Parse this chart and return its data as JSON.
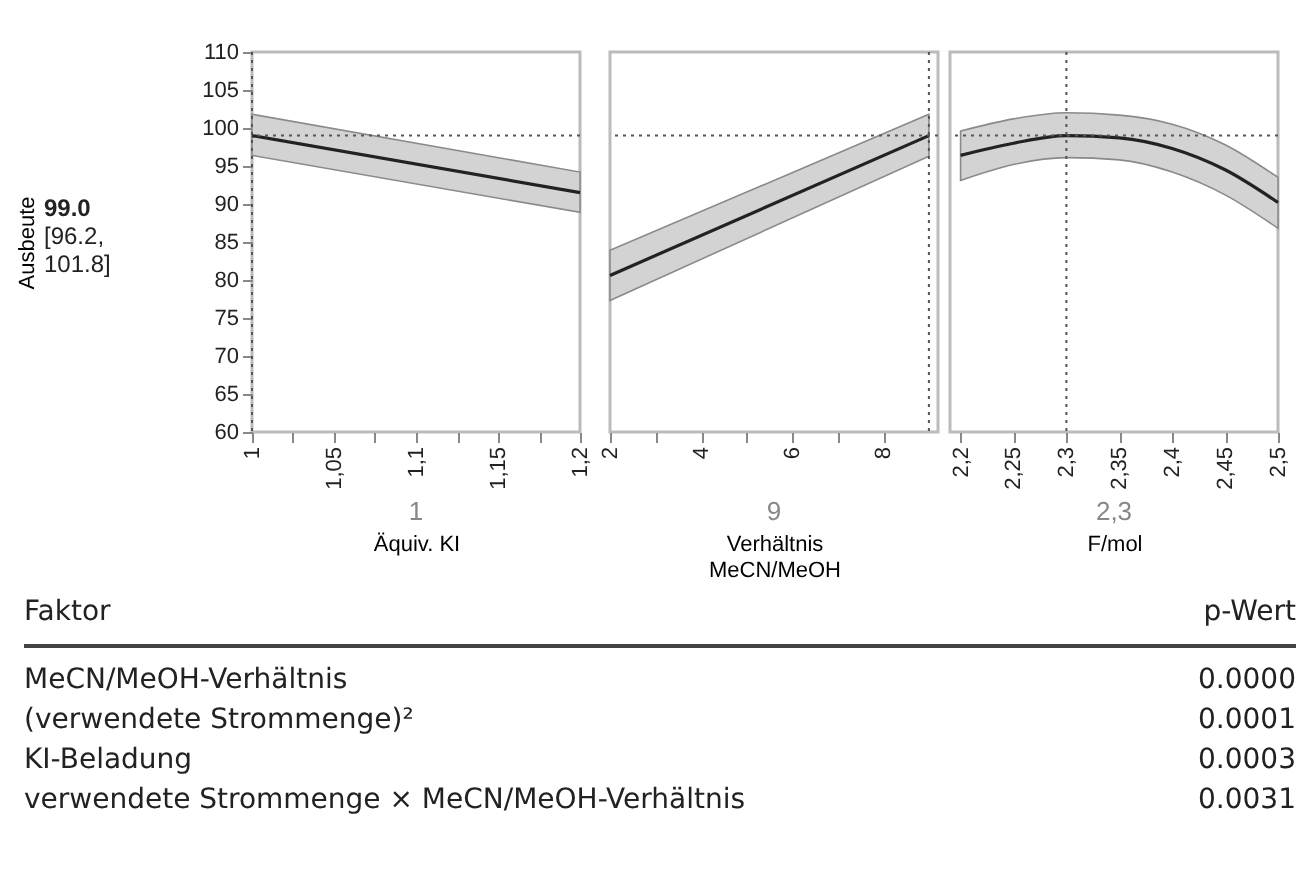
{
  "chart_data": [
    {
      "type": "line",
      "ylabel": "Ausbeute",
      "xlabel": "Äquiv. KI",
      "annotations": [
        "99.0",
        "[96.2,",
        "101.8]",
        "1"
      ],
      "x": [
        1,
        1.2
      ],
      "xlim": [
        1,
        1.2
      ],
      "xticks": [
        1,
        {
          "value": 1.025,
          "label": null
        },
        {
          "value": 1.05,
          "label": "1,05"
        },
        {
          "value": 1.075,
          "label": null
        },
        {
          "value": 1.1,
          "label": "1,1"
        },
        {
          "value": 1.125,
          "label": null
        },
        {
          "value": 1.15,
          "label": "1,15"
        },
        {
          "value": 1.175,
          "label": null
        },
        {
          "value": 1.2,
          "label": "1,2"
        }
      ],
      "ylim": [
        60,
        110
      ],
      "yticks": [
        60,
        65,
        70,
        75,
        80,
        85,
        90,
        95,
        100,
        105,
        110
      ],
      "series": [
        {
          "color": "#222222",
          "values": [
            99.0,
            91.5
          ],
          "lower": [
            96.4,
            88.9
          ],
          "upper": [
            101.8,
            94.2
          ]
        }
      ],
      "ref_lines": [
        {
          "axis": "y",
          "value": 99,
          "line_style": "dotted"
        },
        {
          "axis": "x",
          "value": 1,
          "line_style": "dotted"
        }
      ],
      "tick_labels": true,
      "grid": false
    },
    {
      "type": "line",
      "xlabel": "Verhältnis\nMeCN/MeOH",
      "annotations": [
        "9"
      ],
      "x": [
        2,
        9
      ],
      "xlim": [
        2,
        9.2
      ],
      "xticks": [
        {
          "value": 2,
          "label": "2"
        },
        {
          "value": 3,
          "label": null
        },
        4,
        {
          "value": 5,
          "label": null
        },
        6,
        {
          "value": 7,
          "label": null
        },
        8
      ],
      "ylim": [
        60,
        110
      ],
      "yticks": [
        60,
        65,
        70,
        75,
        80,
        85,
        90,
        95,
        100,
        105,
        110
      ],
      "series": [
        {
          "color": "#222222",
          "values": [
            80.6,
            99.0
          ],
          "lower": [
            77.3,
            96.3
          ],
          "upper": [
            83.9,
            101.8
          ]
        }
      ],
      "ref_lines": [
        {
          "axis": "y",
          "value": 99,
          "line_style": "dotted"
        },
        {
          "axis": "x",
          "value": 9,
          "line_style": "dotted"
        }
      ],
      "tick_labels": "x",
      "grid": false
    },
    {
      "type": "line",
      "xlabel": "F/mol",
      "annotations": [
        "2,3"
      ],
      "x": [
        2.2,
        2.25,
        2.3,
        2.35,
        2.4,
        2.45,
        2.5
      ],
      "xlim": [
        2.19,
        2.5
      ],
      "xticks": [
        {
          "value": 2.2,
          "label": "2,2"
        },
        {
          "value": 2.25,
          "label": "2,25"
        },
        {
          "value": 2.3,
          "label": "2,3"
        },
        {
          "value": 2.35,
          "label": "2,35"
        },
        {
          "value": 2.4,
          "label": "2,4"
        },
        {
          "value": 2.45,
          "label": "2,45"
        },
        {
          "value": 2.5,
          "label": "2,5"
        }
      ],
      "ylim": [
        60,
        110
      ],
      "yticks": [
        60,
        65,
        70,
        75,
        80,
        85,
        90,
        95,
        100,
        105,
        110
      ],
      "series": [
        {
          "color": "#222222",
          "values": [
            96.4,
            98.0,
            99.0,
            98.7,
            97.3,
            94.5,
            90.2
          ],
          "lower": [
            93.1,
            95.2,
            96.1,
            95.8,
            94.2,
            91.2,
            86.8
          ],
          "upper": [
            99.6,
            101.2,
            102.0,
            101.7,
            100.5,
            97.8,
            93.5
          ]
        }
      ],
      "ref_lines": [
        {
          "axis": "y",
          "value": 99,
          "line_style": "dotted"
        },
        {
          "axis": "x",
          "value": 2.3,
          "line_style": "dotted"
        }
      ],
      "tick_labels": "x",
      "grid": false
    },
    {
      "type": "other",
      "annotations": [
        "Faktor",
        "p-Wert",
        "MeCN/MeOH-Verhältnis",
        "0.0000",
        "(verwendete Strommenge)²",
        "0.0001",
        "KI-Beladung",
        "0.0003",
        "verwendete Strommenge × MeCN/MeOH-Verhältnis",
        "0.0031"
      ]
    }
  ]
}
